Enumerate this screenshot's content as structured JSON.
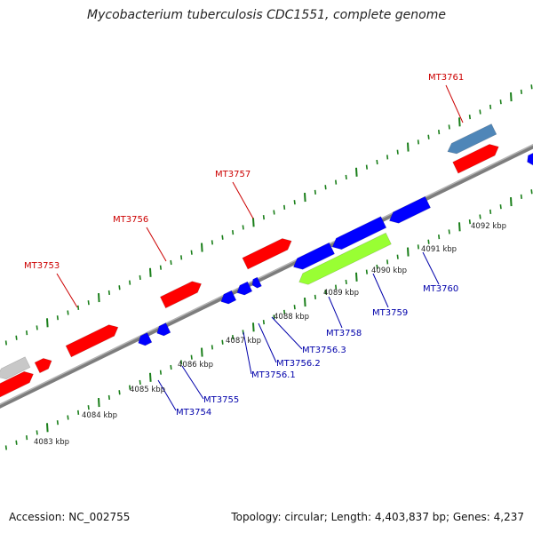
{
  "header": {
    "title": "Mycobacterium tuberculosis CDC1551, complete genome"
  },
  "footer": {
    "accession_label": "Accession: NC_002755",
    "summary": "Topology: circular; Length: 4,403,837 bp; Genes: 4,237"
  },
  "colors": {
    "forward_gene": "#ff0000",
    "reverse_gene": "#0000ff",
    "highlight_gene": "#99ff33",
    "other_gene": "#4f86b8",
    "grey_gene": "#c8c8c8",
    "backbone": "#808080",
    "tick": "#1a7f1a",
    "forward_label": "#cc0000",
    "reverse_label": "#0000aa"
  },
  "kbp_labels": [
    "4083 kbp",
    "4084 kbp",
    "4085 kbp",
    "4086 kbp",
    "4087 kbp",
    "4088 kbp",
    "4089 kbp",
    "4090 kbp",
    "4091 kbp",
    "4092 kbp"
  ],
  "gene_labels": [
    {
      "text": "MT3761",
      "strand": "forward"
    },
    {
      "text": "MT3757",
      "strand": "forward"
    },
    {
      "text": "MT3756",
      "strand": "forward"
    },
    {
      "text": "MT3753",
      "strand": "forward"
    },
    {
      "text": "MT3760",
      "strand": "reverse"
    },
    {
      "text": "MT3759",
      "strand": "reverse"
    },
    {
      "text": "MT3758",
      "strand": "reverse"
    },
    {
      "text": "MT3756.3",
      "strand": "reverse"
    },
    {
      "text": "MT3756.2",
      "strand": "reverse"
    },
    {
      "text": "MT3756.1",
      "strand": "reverse"
    },
    {
      "text": "MT3755",
      "strand": "reverse"
    },
    {
      "text": "MT3754",
      "strand": "reverse"
    }
  ]
}
